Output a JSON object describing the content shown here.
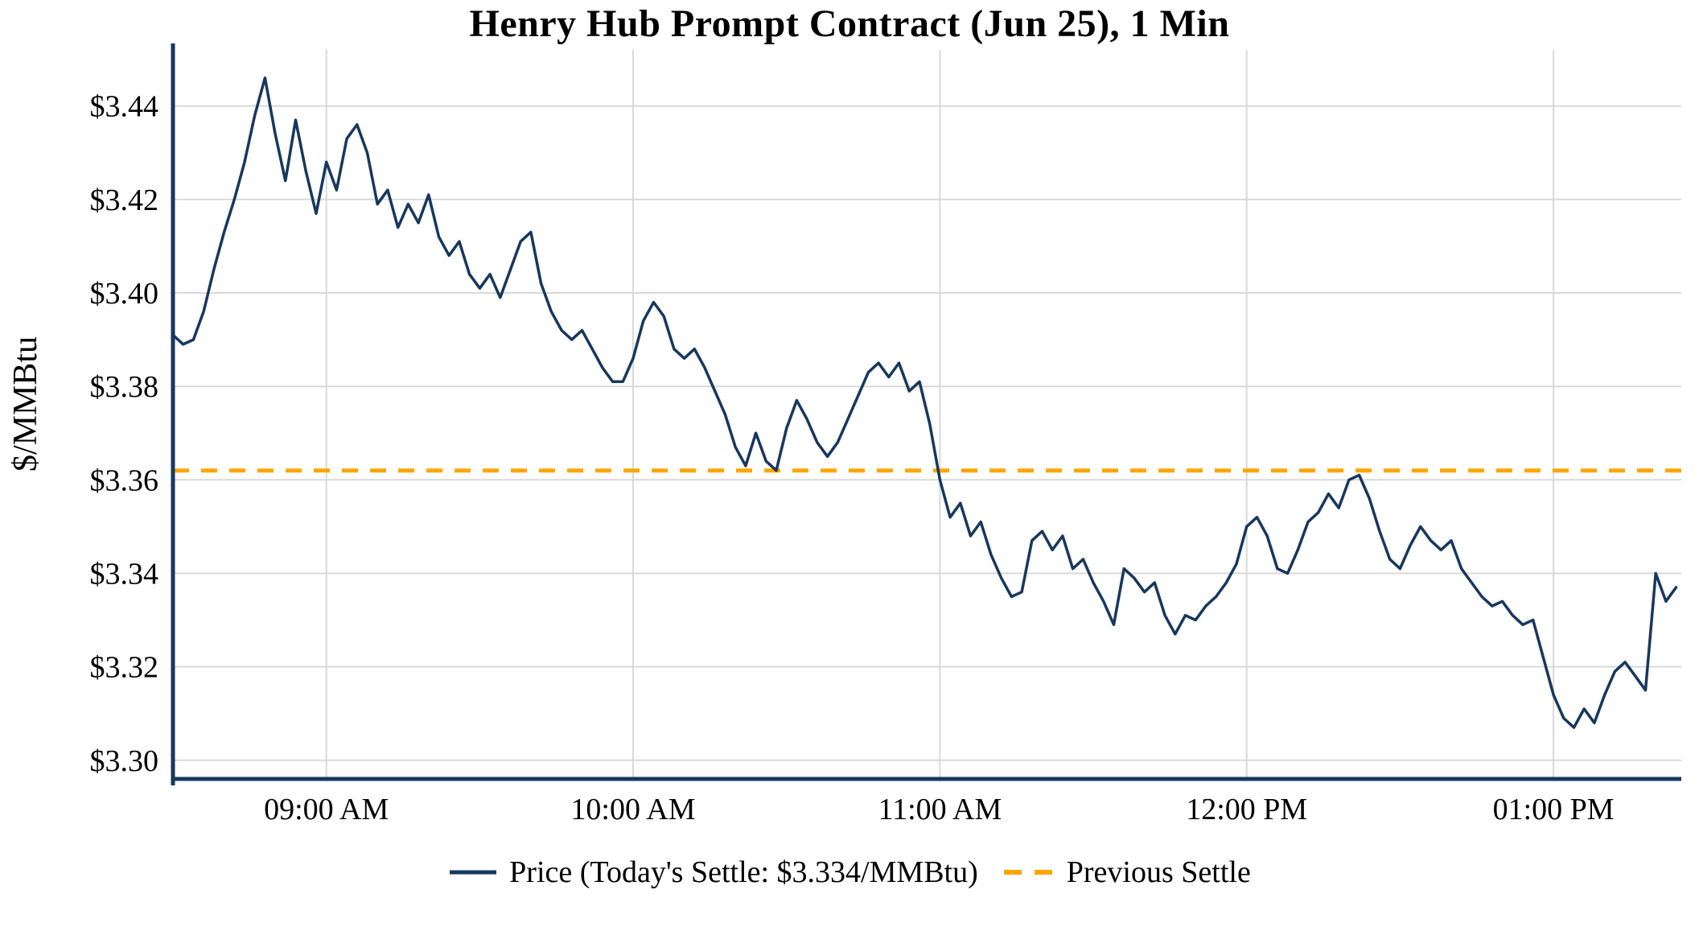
{
  "page": {
    "background": "#ffffff"
  },
  "chart_data": {
    "type": "line",
    "title": "Henry Hub Prompt Contract (Jun 25), 1 Min",
    "ylabel": "$/MMBtu",
    "xlabel": "",
    "grid": true,
    "grid_color": "#d9d9d9",
    "axis_color": "#17375E",
    "background_color": "#ffffff",
    "legend_position": "bottom",
    "ylim": [
      3.296,
      3.452
    ],
    "x_domain_minutes": [
      0,
      295
    ],
    "x_start_time": "08:30 AM",
    "x_interval_minutes": 2,
    "previous_settle": 3.362,
    "todays_settle": 3.334,
    "y_ticks": [
      {
        "value": 3.3,
        "label": "$3.30"
      },
      {
        "value": 3.32,
        "label": "$3.32"
      },
      {
        "value": 3.34,
        "label": "$3.34"
      },
      {
        "value": 3.36,
        "label": "$3.36"
      },
      {
        "value": 3.38,
        "label": "$3.38"
      },
      {
        "value": 3.4,
        "label": "$3.40"
      },
      {
        "value": 3.42,
        "label": "$3.42"
      },
      {
        "value": 3.44,
        "label": "$3.44"
      }
    ],
    "x_ticks": [
      {
        "minute": 30,
        "label": "09:00 AM"
      },
      {
        "minute": 90,
        "label": "10:00 AM"
      },
      {
        "minute": 150,
        "label": "11:00 AM"
      },
      {
        "minute": 210,
        "label": "12:00 PM"
      },
      {
        "minute": 270,
        "label": "01:00 PM"
      }
    ],
    "series": [
      {
        "name": "Price (Today's Settle: $3.334/MMBtu)",
        "type": "line",
        "style": "solid",
        "color": "#17375E",
        "values": [
          3.391,
          3.389,
          3.39,
          3.396,
          3.405,
          3.413,
          3.42,
          3.428,
          3.438,
          3.446,
          3.434,
          3.424,
          3.437,
          3.426,
          3.417,
          3.428,
          3.422,
          3.433,
          3.436,
          3.43,
          3.419,
          3.422,
          3.414,
          3.419,
          3.415,
          3.421,
          3.412,
          3.408,
          3.411,
          3.404,
          3.401,
          3.404,
          3.399,
          3.405,
          3.411,
          3.413,
          3.402,
          3.396,
          3.392,
          3.39,
          3.392,
          3.388,
          3.384,
          3.381,
          3.381,
          3.386,
          3.394,
          3.398,
          3.395,
          3.388,
          3.386,
          3.388,
          3.384,
          3.379,
          3.374,
          3.367,
          3.363,
          3.37,
          3.364,
          3.362,
          3.371,
          3.377,
          3.373,
          3.368,
          3.365,
          3.368,
          3.373,
          3.378,
          3.383,
          3.385,
          3.382,
          3.385,
          3.379,
          3.381,
          3.372,
          3.36,
          3.352,
          3.355,
          3.348,
          3.351,
          3.344,
          3.339,
          3.335,
          3.336,
          3.347,
          3.349,
          3.345,
          3.348,
          3.341,
          3.343,
          3.338,
          3.334,
          3.329,
          3.341,
          3.339,
          3.336,
          3.338,
          3.331,
          3.327,
          3.331,
          3.33,
          3.333,
          3.335,
          3.338,
          3.342,
          3.35,
          3.352,
          3.348,
          3.341,
          3.34,
          3.345,
          3.351,
          3.353,
          3.357,
          3.354,
          3.36,
          3.361,
          3.356,
          3.349,
          3.343,
          3.341,
          3.346,
          3.35,
          3.347,
          3.345,
          3.347,
          3.341,
          3.338,
          3.335,
          3.333,
          3.334,
          3.331,
          3.329,
          3.33,
          3.322,
          3.314,
          3.309,
          3.307,
          3.311,
          3.308,
          3.314,
          3.319,
          3.321,
          3.318,
          3.315,
          3.34,
          3.334,
          3.337
        ]
      },
      {
        "name": "Previous Settle",
        "type": "hline",
        "style": "dashed",
        "color": "#FFA500",
        "value": 3.362
      }
    ]
  }
}
